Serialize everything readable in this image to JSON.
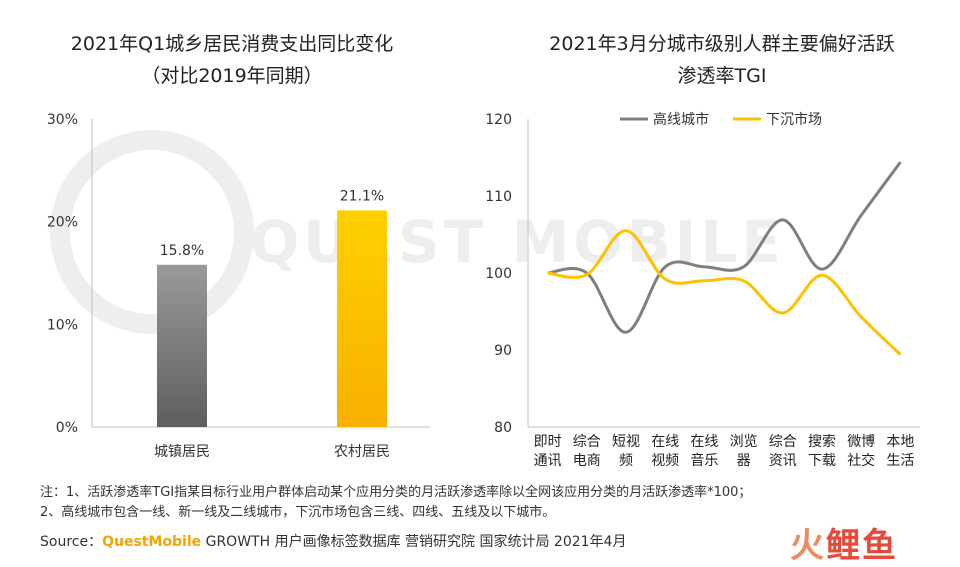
{
  "colors": {
    "bar_gray": "#777777",
    "bar_yellow": "#ffc000",
    "line_gray": "#7f7f7f",
    "line_yellow": "#ffc000",
    "watermark": "#eeeeee",
    "logo_red": "#e84a3a"
  },
  "watermark": "QUEST MOBILE",
  "chart_data": [
    {
      "type": "bar",
      "title": "2021年Q1城乡居民消费支出同比变化",
      "subtitle": "（对比2019年同期）",
      "categories": [
        "城镇居民",
        "农村居民"
      ],
      "values": [
        15.8,
        21.1
      ],
      "data_labels": [
        "15.8%",
        "21.1%"
      ],
      "ylim": [
        0,
        30
      ],
      "yticks": [
        "0%",
        "10%",
        "20%",
        "30%"
      ],
      "grid": false
    },
    {
      "type": "line",
      "title": "2021年3月分城市级别人群主要偏好活跃",
      "title_line2": "渗透率TGI",
      "categories": [
        [
          "即时",
          "通讯"
        ],
        [
          "综合",
          "电商"
        ],
        [
          "短视",
          "频"
        ],
        [
          "在线",
          "视频"
        ],
        [
          "在线",
          "音乐"
        ],
        [
          "浏览",
          "器"
        ],
        [
          "综合",
          "资讯"
        ],
        [
          "搜索",
          "下载"
        ],
        [
          "微博",
          "社交"
        ],
        [
          "本地",
          "生活"
        ]
      ],
      "series": [
        {
          "name": "高线城市",
          "values": [
            100,
            100,
            92.3,
            100.8,
            100.8,
            100.8,
            106.9,
            100.5,
            107.5,
            114.4
          ]
        },
        {
          "name": "下沉市场",
          "values": [
            100,
            99.8,
            105.5,
            99.2,
            99.0,
            99.0,
            94.8,
            99.7,
            94.3,
            89.4
          ]
        }
      ],
      "ylim": [
        80,
        120
      ],
      "yticks": [
        "80",
        "90",
        "100",
        "110",
        "120"
      ],
      "legend": "top",
      "grid": false,
      "smooth": true
    }
  ],
  "notes": {
    "line1": "注：1、活跃渗透率TGI指某目标行业用户群体启动某个应用分类的月活跃渗透率除以全网该应用分类的月活跃渗透率*100；",
    "line2": "2、高线城市包含一线、新一线及二线城市，下沉市场包含三线、四线、五线及以下城市。"
  },
  "source": {
    "prefix": "Source：",
    "brand": "QuestMobile",
    "rest": " GROWTH 用户画像标签数据库 营销研究院 国家统计局 2021年4月"
  },
  "logo": {
    "text_a": "火",
    "text_b": "鲤鱼"
  }
}
